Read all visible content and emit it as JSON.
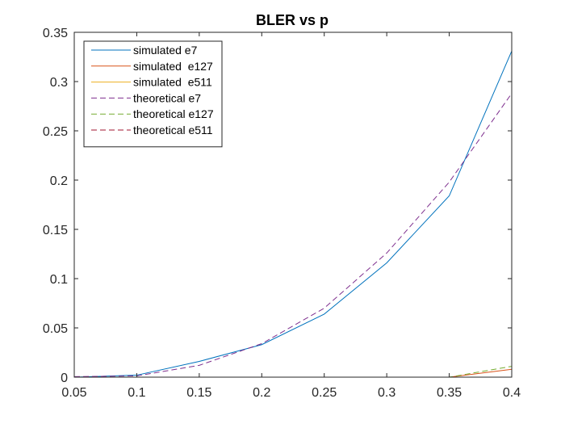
{
  "chart_data": {
    "type": "line",
    "title": "BLER vs p",
    "xlabel": "",
    "ylabel": "",
    "xlim": [
      0.05,
      0.4
    ],
    "ylim": [
      0,
      0.35
    ],
    "xticks": [
      0.05,
      0.1,
      0.15,
      0.2,
      0.25,
      0.3,
      0.35,
      0.4
    ],
    "xtick_labels": [
      "0.05",
      "0.1",
      "0.15",
      "0.2",
      "0.25",
      "0.3",
      "0.35",
      "0.4"
    ],
    "yticks": [
      0,
      0.05,
      0.1,
      0.15,
      0.2,
      0.25,
      0.3,
      0.35
    ],
    "ytick_labels": [
      "0",
      "0.05",
      "0.1",
      "0.15",
      "0.2",
      "0.25",
      "0.3",
      "0.35"
    ],
    "grid": false,
    "legend_position": "top-left",
    "x": [
      0.05,
      0.1,
      0.15,
      0.2,
      0.25,
      0.3,
      0.35,
      0.4
    ],
    "series": [
      {
        "name": "simulated e7",
        "color": "#0072BD",
        "dash": "solid",
        "values": [
          0.0,
          0.002,
          0.016,
          0.033,
          0.064,
          0.116,
          0.184,
          0.331
        ]
      },
      {
        "name": "simulated  e127",
        "color": "#D95319",
        "dash": "solid",
        "values": [
          0,
          0,
          0,
          0,
          0,
          0,
          0,
          0.008
        ]
      },
      {
        "name": "simulated  e511",
        "color": "#EDB120",
        "dash": "solid",
        "values": [
          0,
          0,
          0,
          0,
          0,
          0,
          0,
          0
        ]
      },
      {
        "name": "theoretical e7",
        "color": "#7E2F8E",
        "dash": "dashed",
        "values": [
          0.0005,
          0.0013,
          0.012,
          0.034,
          0.07,
          0.126,
          0.198,
          0.288
        ]
      },
      {
        "name": "theoretical e127",
        "color": "#77AC30",
        "dash": "dashed",
        "values": [
          0,
          0,
          0,
          0,
          0,
          0,
          0,
          0.011
        ]
      },
      {
        "name": "theoretical e511",
        "color": "#A2142F",
        "dash": "dashed",
        "values": [
          0,
          0,
          0,
          0,
          0,
          0,
          0,
          0
        ]
      }
    ]
  }
}
